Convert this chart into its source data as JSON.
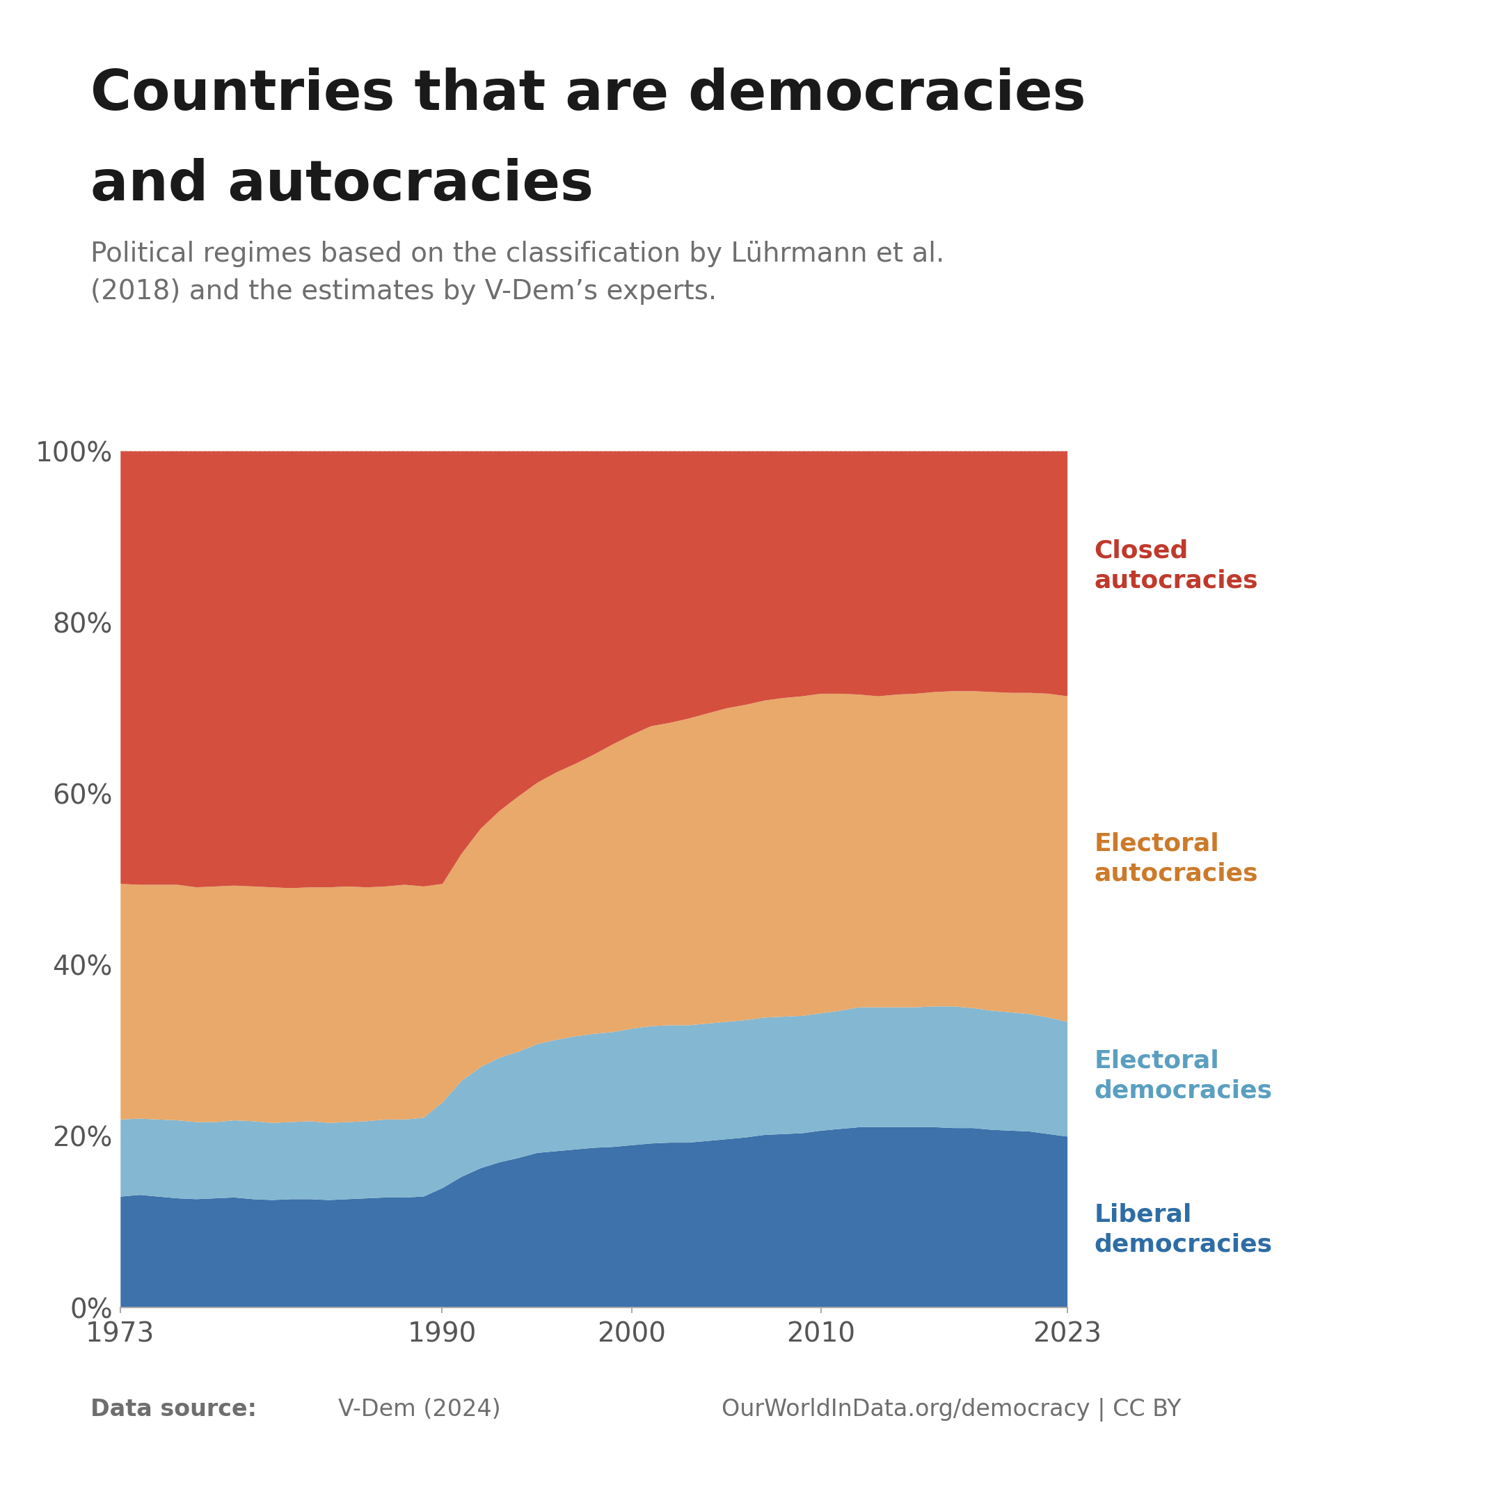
{
  "title_line1": "Countries that are democracies",
  "title_line2": "and autocracies",
  "subtitle": "Political regimes based on the classification by Lührmann et al.\n(2018) and the estimates by V-Dem’s experts.",
  "years": [
    1973,
    1974,
    1975,
    1976,
    1977,
    1978,
    1979,
    1980,
    1981,
    1982,
    1983,
    1984,
    1985,
    1986,
    1987,
    1988,
    1989,
    1990,
    1991,
    1992,
    1993,
    1994,
    1995,
    1996,
    1997,
    1998,
    1999,
    2000,
    2001,
    2002,
    2003,
    2004,
    2005,
    2006,
    2007,
    2008,
    2009,
    2010,
    2011,
    2012,
    2013,
    2014,
    2015,
    2016,
    2017,
    2018,
    2019,
    2020,
    2021,
    2022,
    2023
  ],
  "liberal_dem": [
    0.13,
    0.132,
    0.13,
    0.128,
    0.127,
    0.128,
    0.129,
    0.127,
    0.126,
    0.127,
    0.127,
    0.126,
    0.127,
    0.128,
    0.129,
    0.129,
    0.13,
    0.14,
    0.153,
    0.163,
    0.17,
    0.175,
    0.181,
    0.183,
    0.185,
    0.187,
    0.188,
    0.19,
    0.192,
    0.193,
    0.193,
    0.195,
    0.197,
    0.199,
    0.202,
    0.203,
    0.204,
    0.207,
    0.209,
    0.211,
    0.211,
    0.211,
    0.211,
    0.211,
    0.21,
    0.21,
    0.208,
    0.207,
    0.206,
    0.203,
    0.2
  ],
  "electoral_dem": [
    0.09,
    0.089,
    0.09,
    0.091,
    0.09,
    0.089,
    0.09,
    0.091,
    0.09,
    0.09,
    0.091,
    0.09,
    0.09,
    0.09,
    0.091,
    0.091,
    0.092,
    0.1,
    0.112,
    0.118,
    0.122,
    0.124,
    0.127,
    0.13,
    0.132,
    0.133,
    0.134,
    0.136,
    0.137,
    0.137,
    0.137,
    0.137,
    0.137,
    0.137,
    0.137,
    0.137,
    0.137,
    0.137,
    0.138,
    0.14,
    0.14,
    0.14,
    0.14,
    0.141,
    0.142,
    0.14,
    0.139,
    0.138,
    0.137,
    0.136,
    0.134
  ],
  "electoral_auto": [
    0.275,
    0.273,
    0.274,
    0.275,
    0.274,
    0.275,
    0.274,
    0.274,
    0.275,
    0.273,
    0.273,
    0.275,
    0.275,
    0.273,
    0.272,
    0.274,
    0.27,
    0.255,
    0.265,
    0.278,
    0.288,
    0.298,
    0.305,
    0.312,
    0.318,
    0.326,
    0.336,
    0.343,
    0.35,
    0.353,
    0.358,
    0.362,
    0.366,
    0.368,
    0.37,
    0.372,
    0.373,
    0.373,
    0.37,
    0.365,
    0.363,
    0.365,
    0.366,
    0.367,
    0.368,
    0.37,
    0.372,
    0.373,
    0.375,
    0.378,
    0.38
  ],
  "closed_auto": [
    0.505,
    0.506,
    0.506,
    0.506,
    0.509,
    0.508,
    0.507,
    0.508,
    0.509,
    0.51,
    0.509,
    0.509,
    0.508,
    0.509,
    0.508,
    0.506,
    0.508,
    0.505,
    0.47,
    0.441,
    0.42,
    0.403,
    0.387,
    0.375,
    0.365,
    0.354,
    0.342,
    0.331,
    0.321,
    0.317,
    0.312,
    0.306,
    0.3,
    0.296,
    0.291,
    0.288,
    0.286,
    0.283,
    0.283,
    0.284,
    0.286,
    0.284,
    0.283,
    0.281,
    0.28,
    0.28,
    0.281,
    0.282,
    0.282,
    0.283,
    0.286
  ],
  "colors": {
    "liberal_dem": "#3d72aa",
    "electoral_dem": "#84b7d1",
    "electoral_auto": "#e8a96a",
    "closed_auto": "#d44f3e"
  },
  "label_colors": {
    "liberal_dem": "#2e6da4",
    "electoral_dem": "#5a9fc0",
    "electoral_auto": "#cc7a2a",
    "closed_auto": "#c0392b"
  },
  "background_color": "#ffffff",
  "grid_color": "#c8c8c8",
  "ytick_labels": [
    "0%",
    "20%",
    "40%",
    "60%",
    "80%",
    "100%"
  ],
  "ytick_values": [
    0.0,
    0.2,
    0.4,
    0.6,
    0.8,
    1.0
  ],
  "xtick_labels": [
    "1973",
    "1990",
    "2000",
    "2010",
    "2023"
  ],
  "xtick_values": [
    1973,
    1990,
    2000,
    2010,
    2023
  ],
  "logo_bg": "#1a3557",
  "logo_red": "#c0392b",
  "footer_color": "#6e6e6e",
  "title_color": "#1a1a1a",
  "subtitle_color": "#6e6e6e"
}
